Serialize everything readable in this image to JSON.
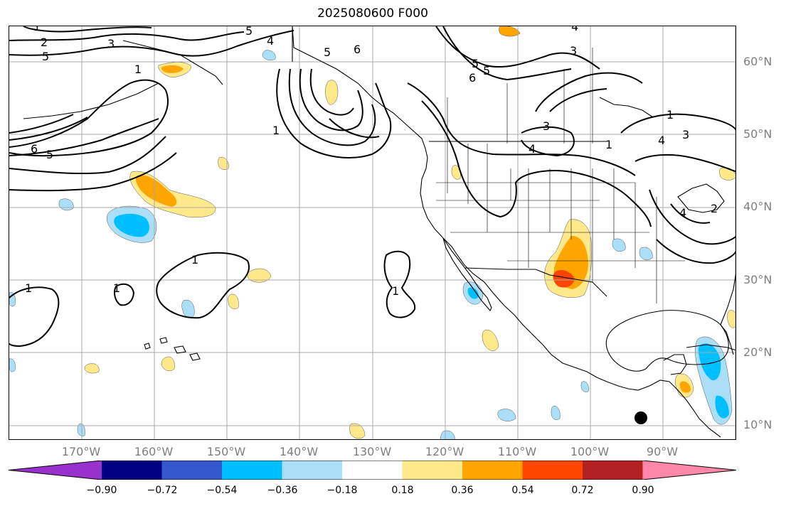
{
  "title": "2025080600 F000",
  "map": {
    "lat_labels": [
      "60°N",
      "50°N",
      "40°N",
      "30°N",
      "20°N",
      "10°N"
    ],
    "lon_labels": [
      "170°W",
      "160°W",
      "150°W",
      "140°W",
      "130°W",
      "120°W",
      "110°W",
      "100°W",
      "90°W"
    ],
    "contour_labels": [
      "1",
      "2",
      "3",
      "4",
      "5",
      "4",
      "3",
      "1",
      "6",
      "5",
      "5",
      "6",
      "4",
      "5",
      "6",
      "4",
      "3",
      "1",
      "3",
      "4",
      "1",
      "1",
      "3",
      "4",
      "2",
      "1",
      "1",
      "1",
      "1"
    ],
    "colors": {
      "neg_extreme": "#9932cc",
      "neg_090": "#000080",
      "neg_072": "#3558cc",
      "neg_054": "#00bfff",
      "neg_036": "#aadff7",
      "neutral": "#ffffff",
      "pos_018": "#ffe98b",
      "pos_036": "#ffa500",
      "pos_054": "#ff4500",
      "pos_072": "#b22222",
      "pos_extreme": "#ff88aa",
      "contour": "#000000",
      "grid": "#a9a9a9",
      "axis_label": "#7f7f7f"
    }
  },
  "colorbar": {
    "ticks": [
      "−0.90",
      "−0.72",
      "−0.54",
      "−0.36",
      "−0.18",
      "0.18",
      "0.36",
      "0.54",
      "0.72",
      "0.90"
    ],
    "segment_colors": [
      "#9932cc",
      "#000080",
      "#3558cc",
      "#00bfff",
      "#aadff7",
      "#ffffff",
      "#ffe98b",
      "#ffa500",
      "#ff4500",
      "#b22222",
      "#ff88aa"
    ]
  }
}
